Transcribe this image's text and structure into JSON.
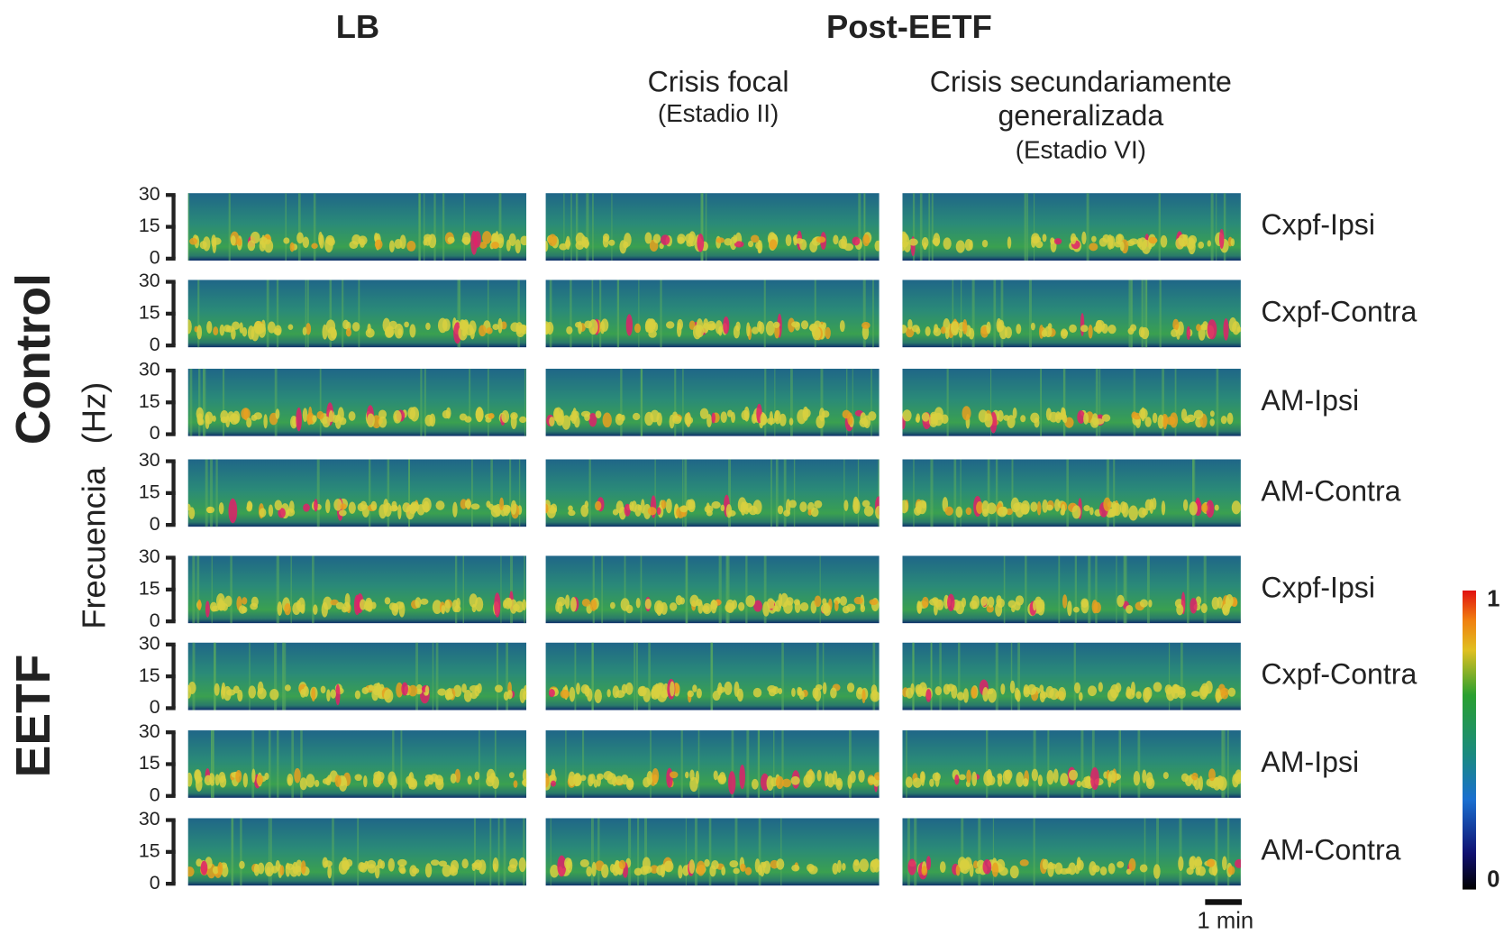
{
  "header": {
    "left": "LB",
    "right": "Post-EETF"
  },
  "columns": {
    "focal": {
      "title": "Crisis focal",
      "stage": "(Estadio II)"
    },
    "generalized": {
      "title_line1": "Crisis secundariamente",
      "title_line2": "generalizada",
      "stage": "(Estadio VI)"
    }
  },
  "groups": [
    "Control",
    "EETF"
  ],
  "y_axis": {
    "label_main": "Frecuencia",
    "label_unit": "(Hz)",
    "ticks": [
      0,
      15,
      30
    ]
  },
  "rows": [
    "Cxpf-Ipsi",
    "Cxpf-Contra",
    "AM-Ipsi",
    "AM-Contra",
    "Cxpf-Ipsi",
    "Cxpf-Contra",
    "AM-Ipsi",
    "AM-Contra"
  ],
  "colorbar": {
    "min": 0,
    "max": 1
  },
  "scale_bar": "1 min"
}
